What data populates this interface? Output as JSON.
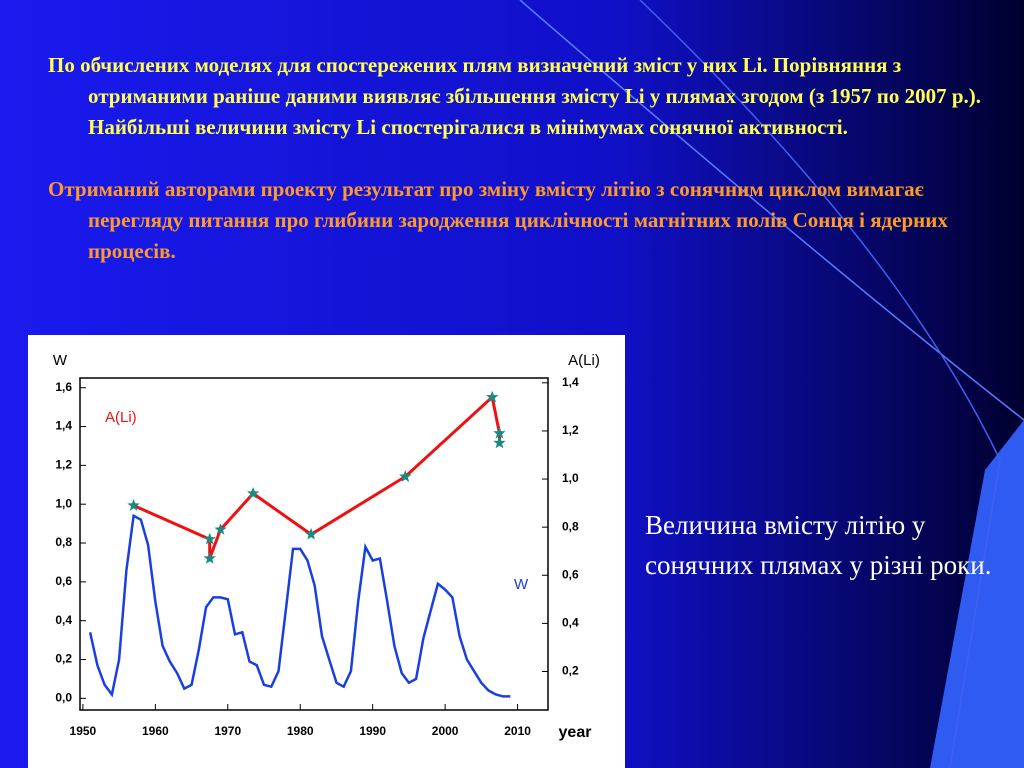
{
  "paragraphs": [
    "По обчислених моделях для спостережених плям визначений зміст у них Li. Порівняння з отриманими раніше даними виявляє збільшення змісту Li у плямах згодом (з 1957 по 2007 р.). Найбільші величини змісту Li спостерігалися в мінімумах сонячної активності.",
    "Отриманий авторами проекту результат про зміну вмісту літію з сонячним циклом вимагає перегляду питання про глибини зародження циклічності магнітних полів Сонця і ядерних процесів."
  ],
  "caption": "Величина вмісту літію у сонячних плямах у різні роки.",
  "chart_data": {
    "type": "line",
    "xlabel": "year",
    "ylabel": "W",
    "y2label": "A(Li)",
    "xlim": [
      1949.6,
      2014.2
    ],
    "xticks": [
      1950,
      1960,
      1970,
      1980,
      1990,
      2000,
      2010
    ],
    "ylim": [
      -0.06,
      1.65
    ],
    "yticks": [
      {
        "value": 0,
        "label": "0,0"
      },
      {
        "value": 0.2,
        "label": "0,2"
      },
      {
        "value": 0.4,
        "label": "0,4"
      },
      {
        "value": 0.6,
        "label": "0,6"
      },
      {
        "value": 0.8,
        "label": "0,8"
      },
      {
        "value": 1.0,
        "label": "1,0"
      },
      {
        "value": 1.2,
        "label": "1,2"
      },
      {
        "value": 1.4,
        "label": "1,4"
      },
      {
        "value": 1.6,
        "label": "1,6"
      }
    ],
    "y2lim": [
      0.04,
      1.42
    ],
    "y2ticks": [
      {
        "value": 0.2,
        "label": "0,2"
      },
      {
        "value": 0.4,
        "label": "0,4"
      },
      {
        "value": 0.6,
        "label": "0,6"
      },
      {
        "value": 0.8,
        "label": "0,8"
      },
      {
        "value": 1.0,
        "label": "1,0"
      },
      {
        "value": 1.2,
        "label": "1,2"
      },
      {
        "value": 1.4,
        "label": "1,4"
      }
    ],
    "series": [
      {
        "name": "W",
        "color": "#1a3fe0",
        "axis": "y",
        "x": [
          1951,
          1952,
          1953,
          1954,
          1955,
          1956,
          1957,
          1958,
          1959,
          1960,
          1961,
          1962,
          1963,
          1964,
          1965,
          1966,
          1967,
          1968,
          1969,
          1970,
          1971,
          1972,
          1973,
          1974,
          1975,
          1976,
          1977,
          1978,
          1979,
          1980,
          1981,
          1982,
          1983,
          1984,
          1985,
          1986,
          1987,
          1988,
          1989,
          1990,
          1991,
          1992,
          1993,
          1994,
          1995,
          1996,
          1997,
          1998,
          1999,
          2000,
          2001,
          2002,
          2003,
          2004,
          2005,
          2006,
          2007,
          2008,
          2009
        ],
        "values": [
          0.34,
          0.17,
          0.07,
          0.02,
          0.2,
          0.66,
          0.94,
          0.92,
          0.79,
          0.5,
          0.27,
          0.19,
          0.13,
          0.05,
          0.07,
          0.25,
          0.47,
          0.52,
          0.52,
          0.51,
          0.33,
          0.34,
          0.19,
          0.17,
          0.07,
          0.06,
          0.14,
          0.45,
          0.77,
          0.77,
          0.71,
          0.58,
          0.32,
          0.2,
          0.08,
          0.06,
          0.14,
          0.5,
          0.78,
          0.71,
          0.72,
          0.5,
          0.27,
          0.13,
          0.08,
          0.1,
          0.31,
          0.45,
          0.59,
          0.56,
          0.52,
          0.32,
          0.2,
          0.14,
          0.08,
          0.04,
          0.02,
          0.01,
          0.01
        ]
      },
      {
        "name": "A(Li)",
        "color": "#ee1111",
        "marker_color": "#1a8a80",
        "axis": "y2",
        "x": [
          1957,
          1967.5,
          1967.5,
          1969,
          1973.5,
          1981.5,
          1994.5,
          2006.5,
          2007.5,
          2007.5
        ],
        "values": [
          0.89,
          0.75,
          0.67,
          0.79,
          0.94,
          0.77,
          1.01,
          1.34,
          1.19,
          1.15
        ]
      }
    ]
  }
}
